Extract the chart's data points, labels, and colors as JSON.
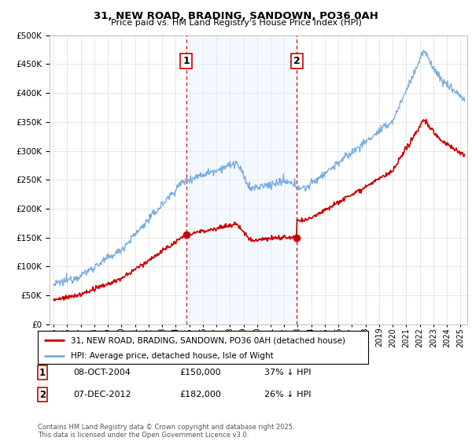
{
  "title": "31, NEW ROAD, BRADING, SANDOWN, PO36 0AH",
  "subtitle": "Price paid vs. HM Land Registry's House Price Index (HPI)",
  "legend_line1": "31, NEW ROAD, BRADING, SANDOWN, PO36 0AH (detached house)",
  "legend_line2": "HPI: Average price, detached house, Isle of Wight",
  "annotation1_date": "08-OCT-2004",
  "annotation1_price": "£150,000",
  "annotation1_hpi": "37% ↓ HPI",
  "annotation1_year": 2004.78,
  "annotation1_value": 150000,
  "annotation2_date": "07-DEC-2012",
  "annotation2_price": "£182,000",
  "annotation2_hpi": "26% ↓ HPI",
  "annotation2_year": 2012.92,
  "annotation2_value": 182000,
  "footer": "Contains HM Land Registry data © Crown copyright and database right 2025.\nThis data is licensed under the Open Government Licence v3.0.",
  "hpi_color": "#7aadde",
  "price_color": "#cc0000",
  "shaded_region_color": "#ddeeff",
  "annotation_box_color": "#cc0000",
  "ylim": [
    0,
    500000
  ],
  "xlim_start": 1994.7,
  "xlim_end": 2025.5
}
